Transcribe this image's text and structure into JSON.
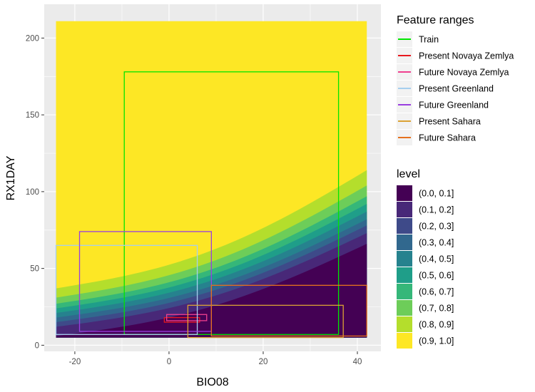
{
  "chart_data": {
    "type": "area",
    "xlabel": "BIO08",
    "ylabel": "RX1DAY",
    "xlim": [
      -26.5,
      45
    ],
    "ylim": [
      -4,
      222
    ],
    "x_ticks": [
      -20,
      0,
      20,
      40
    ],
    "y_ticks": [
      0,
      50,
      100,
      150,
      200
    ],
    "grid": true,
    "legend_position": "right",
    "surface": {
      "x_range": [
        -24,
        42
      ],
      "y_range": [
        5,
        211
      ],
      "description_levels": "contour bands of level shaded from purple (low) to yellow (high)",
      "band_boundaries": [
        {
          "upper_level": 0.1,
          "left_y": 6,
          "right_y": 66
        },
        {
          "upper_level": 0.2,
          "left_y": 12,
          "right_y": 73
        },
        {
          "upper_level": 0.3,
          "left_y": 15,
          "right_y": 78
        },
        {
          "upper_level": 0.4,
          "left_y": 18,
          "right_y": 82
        },
        {
          "upper_level": 0.5,
          "left_y": 21,
          "right_y": 87
        },
        {
          "upper_level": 0.6,
          "left_y": 24,
          "right_y": 92
        },
        {
          "upper_level": 0.7,
          "left_y": 27,
          "right_y": 97
        },
        {
          "upper_level": 0.8,
          "left_y": 31,
          "right_y": 104
        },
        {
          "upper_level": 0.9,
          "left_y": 37,
          "right_y": 114
        }
      ]
    },
    "rectangles": [
      {
        "name": "Train",
        "color": "#00e600",
        "xmin": -9.5,
        "xmax": 36,
        "ymin": 7,
        "ymax": 178
      },
      {
        "name": "Present Novaya Zemlya",
        "color": "#e8191f",
        "xmin": -1,
        "xmax": 6.5,
        "ymin": 15,
        "ymax": 18
      },
      {
        "name": "Future Novaya Zemlya",
        "color": "#ef3f8f",
        "xmin": -0.5,
        "xmax": 8,
        "ymin": 16,
        "ymax": 20
      },
      {
        "name": "Present Greenland",
        "color": "#a6cfee",
        "xmin": -24,
        "xmax": 6,
        "ymin": 7,
        "ymax": 65
      },
      {
        "name": "Future Greenland",
        "color": "#9a3ee0",
        "xmin": -19,
        "xmax": 9,
        "ymin": 9,
        "ymax": 74
      },
      {
        "name": "Present Sahara",
        "color": "#dba234",
        "xmin": 4,
        "xmax": 37,
        "ymin": 5,
        "ymax": 26
      },
      {
        "name": "Future Sahara",
        "color": "#e5711e",
        "xmin": 9,
        "xmax": 42,
        "ymin": 6,
        "ymax": 39
      }
    ],
    "legends": {
      "feature_ranges_title": "Feature ranges",
      "level_title": "level",
      "levels": [
        {
          "label": "(0.0, 0.1]",
          "color": "#440154"
        },
        {
          "label": "(0.1, 0.2]",
          "color": "#482878"
        },
        {
          "label": "(0.2, 0.3]",
          "color": "#3e4a89"
        },
        {
          "label": "(0.3, 0.4]",
          "color": "#31688e"
        },
        {
          "label": "(0.4, 0.5]",
          "color": "#26828e"
        },
        {
          "label": "(0.5, 0.6]",
          "color": "#1f9e89"
        },
        {
          "label": "(0.6, 0.7]",
          "color": "#35b779"
        },
        {
          "label": "(0.7, 0.8]",
          "color": "#6dcd59"
        },
        {
          "label": "(0.8, 0.9]",
          "color": "#b4de2c"
        },
        {
          "label": "(0.9, 1.0]",
          "color": "#fde725"
        }
      ]
    },
    "panel_color": "#ebebeb",
    "grid_color": "#ffffff"
  }
}
